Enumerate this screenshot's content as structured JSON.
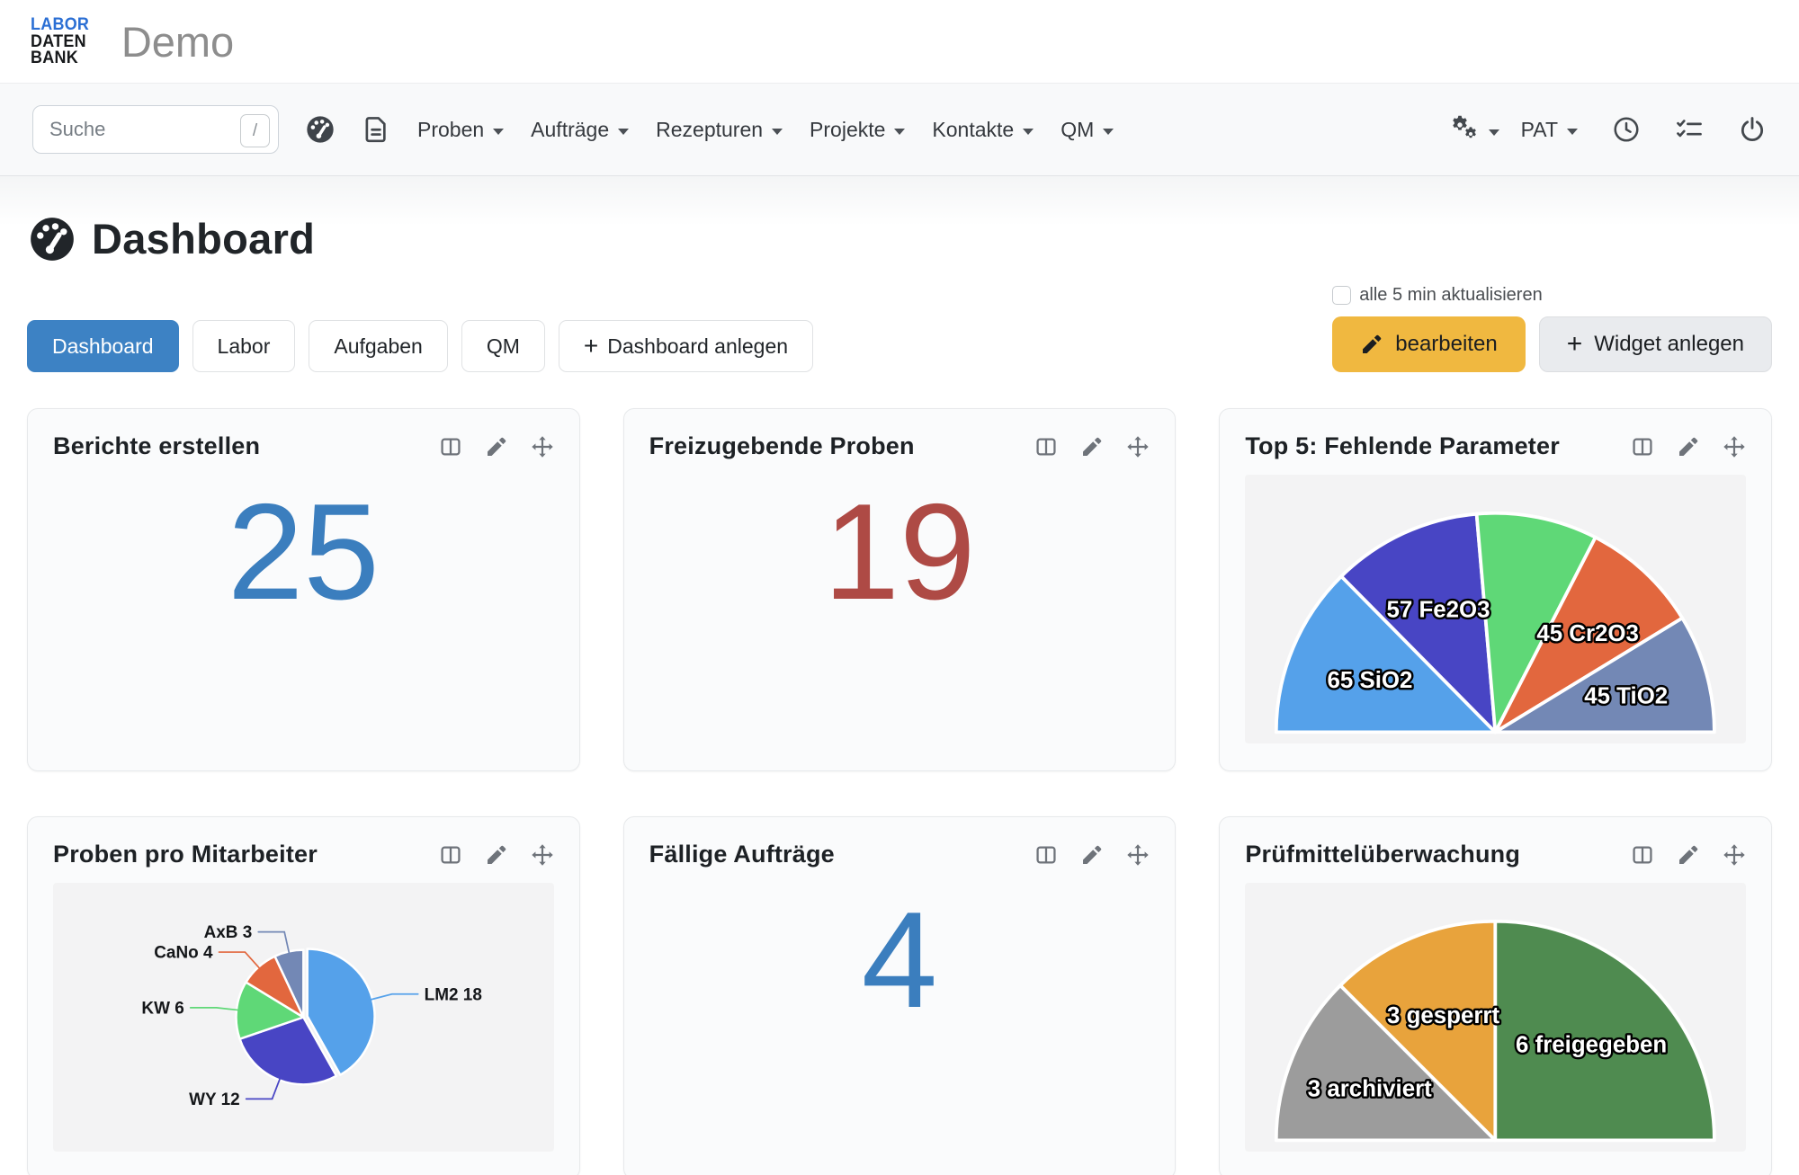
{
  "brand": {
    "logo_lines": [
      "LABOR",
      "DATEN",
      "BANK"
    ],
    "logo_accent_color": "#2B6FD4",
    "workspace": "Demo"
  },
  "navbar": {
    "search": {
      "placeholder": "Suche",
      "shortcut_key": "/"
    },
    "menus": [
      {
        "label": "Proben"
      },
      {
        "label": "Aufträge"
      },
      {
        "label": "Rezepturen"
      },
      {
        "label": "Projekte"
      },
      {
        "label": "Kontakte"
      },
      {
        "label": "QM"
      }
    ],
    "user_label": "PAT"
  },
  "page": {
    "title": "Dashboard",
    "tabs": [
      {
        "label": "Dashboard",
        "active": true
      },
      {
        "label": "Labor",
        "active": false
      },
      {
        "label": "Aufgaben",
        "active": false
      },
      {
        "label": "QM",
        "active": false
      }
    ],
    "create_dashboard_label": "Dashboard anlegen",
    "auto_refresh_label": "alle 5 min aktualisieren",
    "auto_refresh_checked": false,
    "edit_label": "bearbeiten",
    "create_widget_label": "Widget anlegen",
    "plus_glyph": "+"
  },
  "theme": {
    "active_tab_color": "#3D82C4",
    "edit_button_color": "#F0B840",
    "number_blue": "#3B7EBE",
    "number_red": "#AE4A45"
  },
  "widgets": [
    {
      "title": "Berichte erstellen",
      "type": "number",
      "value": "25",
      "color": "#3B7EBE"
    },
    {
      "title": "Freizugebende Proben",
      "type": "number",
      "value": "19",
      "color": "#AE4A45"
    },
    {
      "title": "Top 5: Fehlende Parameter",
      "type": "chart",
      "chart_index": 0
    },
    {
      "title": "Proben pro Mitarbeiter",
      "type": "chart",
      "chart_index": 1
    },
    {
      "title": "Fällige Aufträge",
      "type": "number",
      "value": "4",
      "color": "#3B7EBE"
    },
    {
      "title": "Prüfmittelüberwachung",
      "type": "chart",
      "chart_index": 2
    }
  ],
  "chart_data": [
    {
      "type": "pie",
      "variant": "half",
      "title": "Top 5: Fehlende Parameter",
      "legend": "none",
      "slices": [
        {
          "label": "65 SiO2",
          "value": 65,
          "color": "#55A1EA"
        },
        {
          "label": "57 Fe2O3",
          "value": 57,
          "color": "#4845C4"
        },
        {
          "label": "",
          "value": 46,
          "color": "#5FD877"
        },
        {
          "label": "45 Cr2O3",
          "value": 45,
          "color": "#E2673E"
        },
        {
          "label": "45 TiO2",
          "value": 45,
          "color": "#7388B5"
        }
      ]
    },
    {
      "type": "pie",
      "variant": "full",
      "title": "Proben pro Mitarbeiter",
      "legend": "none",
      "label_style": "callout",
      "slices": [
        {
          "label": "LM2 18",
          "value": 18,
          "color": "#55A1EA",
          "exploded": true
        },
        {
          "label": "WY 12",
          "value": 12,
          "color": "#4845C4"
        },
        {
          "label": "KW 6",
          "value": 6,
          "color": "#5FD877"
        },
        {
          "label": "CaNo 4",
          "value": 4,
          "color": "#E2673E"
        },
        {
          "label": "AxB 3",
          "value": 3,
          "color": "#7388B5"
        }
      ]
    },
    {
      "type": "pie",
      "variant": "half",
      "title": "Prüfmittelüberwachung",
      "legend": "none",
      "slices": [
        {
          "label": "3 archiviert",
          "value": 3,
          "color": "#9C9C9C"
        },
        {
          "label": "3 gesperrt",
          "value": 3,
          "color": "#E8A33C"
        },
        {
          "label": "6 freigegeben",
          "value": 6,
          "color": "#4F8B50"
        }
      ]
    }
  ]
}
